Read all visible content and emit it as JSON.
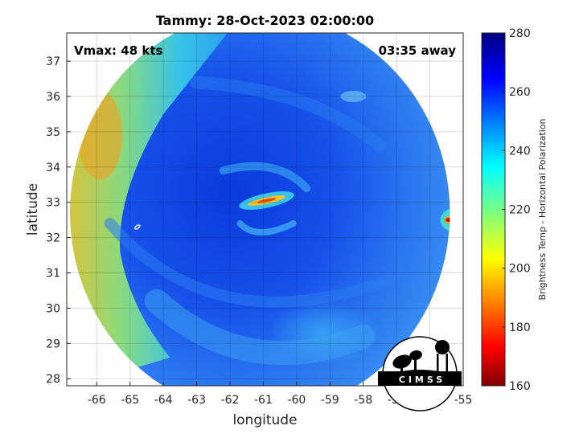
{
  "title": "Tammy: 28-Oct-2023 02:00:00",
  "annotations": {
    "vmax": "Vmax: 48 kts",
    "away": "03:35 away"
  },
  "logo": {
    "text": "CIMSS"
  },
  "chart_data": {
    "type": "heatmap",
    "xlabel": "longitude",
    "ylabel": "latitude",
    "xlim": [
      -66.9,
      -55
    ],
    "ylim": [
      27.8,
      37.8
    ],
    "xticks": [
      -66,
      -65,
      -64,
      -63,
      -62,
      -61,
      -60,
      -59,
      -58,
      -57,
      -56,
      -55
    ],
    "yticks": [
      28,
      29,
      30,
      31,
      32,
      33,
      34,
      35,
      36,
      37
    ],
    "grid": true,
    "swath": {
      "center_lon": -61.1,
      "center_lat": 32.7,
      "radius_deg": 5.7
    },
    "storm_center": {
      "lon": -60.9,
      "lat": 33.05
    },
    "colorbar": {
      "label": "Brightness Temp - Horizontal Polarization",
      "min": 160,
      "max": 280,
      "ticks": [
        160,
        180,
        200,
        220,
        240,
        260,
        280
      ],
      "colormap": "jet"
    }
  }
}
